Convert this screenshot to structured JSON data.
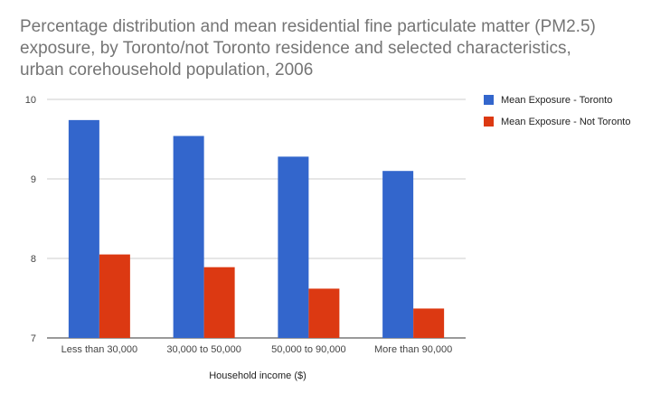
{
  "colors": {
    "series_toronto": "#3366cc",
    "series_not_toronto": "#dc3912",
    "gridline": "#cccccc",
    "axis_text": "#444444"
  },
  "chart_data": {
    "type": "bar",
    "title": "Percentage distribution and mean residential fine particulate matter (PM2.5) exposure, by Toronto/not Toronto residence and selected characteristics, urban corehousehold population, 2006",
    "xlabel": "Household income ($)",
    "ylabel": "",
    "ylim": [
      7,
      10
    ],
    "yticks": [
      7,
      8,
      9,
      10
    ],
    "grid": true,
    "legend_position": "right",
    "categories": [
      "Less than 30,000",
      "30,000 to 50,000",
      "50,000 to 90,000",
      "More than 90,000"
    ],
    "series": [
      {
        "name": "Mean Exposure - Toronto",
        "color": "#3366cc",
        "values": [
          9.74,
          9.54,
          9.28,
          9.1
        ]
      },
      {
        "name": "Mean Exposure - Not Toronto",
        "color": "#dc3912",
        "values": [
          8.05,
          7.89,
          7.62,
          7.37
        ]
      }
    ]
  }
}
